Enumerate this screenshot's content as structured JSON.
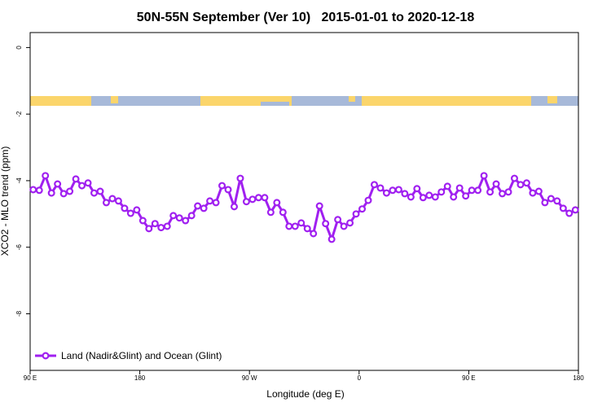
{
  "chart_data": {
    "type": "line",
    "title": "50N-55N September (Ver 10)   2015-01-01 to 2020-12-18",
    "xlabel": "Longitude (deg E)",
    "ylabel": "XCO2 - MLO trend (ppm)",
    "xlim": [
      90,
      540
    ],
    "ylim": [
      -9.7,
      0.45
    ],
    "xticks": [
      {
        "value": 90,
        "label": "90 E"
      },
      {
        "value": 180,
        "label": "180"
      },
      {
        "value": 270,
        "label": "90 W"
      },
      {
        "value": 360,
        "label": "0"
      },
      {
        "value": 450,
        "label": "90 E"
      },
      {
        "value": 540,
        "label": "180"
      }
    ],
    "yticks": [
      -8,
      -6,
      -4,
      -2,
      0
    ],
    "legend": "bottom-left",
    "x": [
      92.5,
      97.5,
      102.5,
      107.5,
      112.5,
      117.5,
      122.5,
      127.5,
      132.5,
      137.5,
      142.5,
      147.5,
      152.5,
      157.5,
      162.5,
      167.5,
      172.5,
      177.5,
      182.5,
      187.5,
      192.5,
      197.5,
      202.5,
      207.5,
      212.5,
      217.5,
      222.5,
      227.5,
      232.5,
      237.5,
      242.5,
      247.5,
      252.5,
      257.5,
      262.5,
      267.5,
      272.5,
      277.5,
      282.5,
      287.5,
      292.5,
      297.5,
      302.5,
      307.5,
      312.5,
      317.5,
      322.5,
      327.5,
      332.5,
      337.5,
      342.5,
      347.5,
      352.5,
      357.5,
      362.5,
      367.5,
      372.5,
      377.5,
      382.5,
      387.5,
      392.5,
      397.5,
      402.5,
      407.5,
      412.5,
      417.5,
      422.5,
      427.5,
      432.5,
      437.5,
      442.5,
      447.5,
      452.5,
      457.5,
      462.5,
      467.5,
      472.5,
      477.5,
      482.5,
      487.5,
      492.5,
      497.5,
      502.5,
      507.5,
      512.5,
      517.5,
      522.5,
      527.5,
      532.5,
      537.5
    ],
    "series": [
      {
        "name": "Land (Nadir&Glint) and Ocean (Glint)",
        "color": "#a020f0",
        "values": [
          -4.27,
          -4.29,
          -3.85,
          -4.37,
          -4.1,
          -4.39,
          -4.32,
          -3.95,
          -4.15,
          -4.07,
          -4.37,
          -4.32,
          -4.66,
          -4.54,
          -4.61,
          -4.83,
          -4.98,
          -4.88,
          -5.2,
          -5.44,
          -5.29,
          -5.41,
          -5.37,
          -5.05,
          -5.12,
          -5.2,
          -5.05,
          -4.76,
          -4.83,
          -4.61,
          -4.66,
          -4.15,
          -4.27,
          -4.78,
          -3.93,
          -4.63,
          -4.56,
          -4.51,
          -4.51,
          -4.95,
          -4.66,
          -4.95,
          -5.37,
          -5.37,
          -5.27,
          -5.44,
          -5.59,
          -4.76,
          -5.29,
          -5.76,
          -5.17,
          -5.37,
          -5.27,
          -5.0,
          -4.85,
          -4.59,
          -4.12,
          -4.22,
          -4.37,
          -4.29,
          -4.27,
          -4.39,
          -4.49,
          -4.24,
          -4.51,
          -4.44,
          -4.49,
          -4.34,
          -4.17,
          -4.49,
          -4.22,
          -4.46,
          -4.29,
          -4.29,
          -3.85,
          -4.34,
          -4.1,
          -4.39,
          -4.34,
          -3.93,
          -4.12,
          -4.07,
          -4.37,
          -4.32,
          -4.66,
          -4.54,
          -4.61,
          -4.83,
          -4.98,
          -4.88
        ]
      }
    ]
  }
}
